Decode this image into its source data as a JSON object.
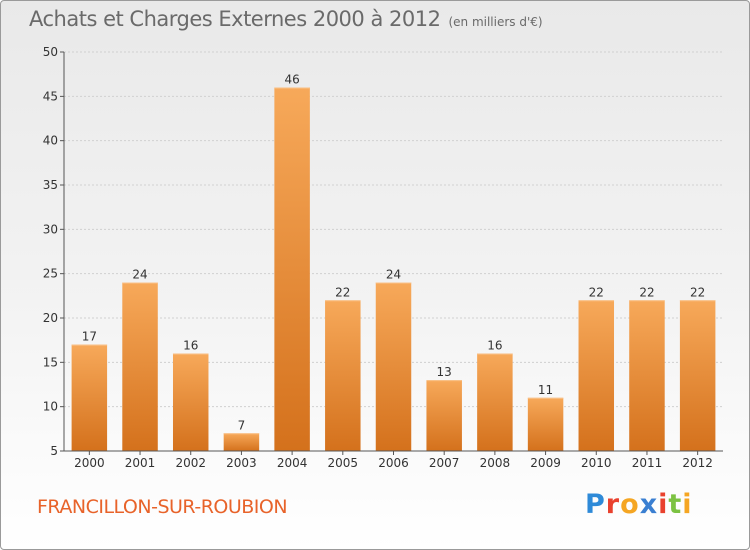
{
  "title": "Achats et Charges Externes 2000 à 2012",
  "subtitle": "(en milliers d'€)",
  "commune": "FRANCILLON-SUR-ROUBION",
  "logo": {
    "text": "Proxiti",
    "letters": [
      {
        "ch": "P",
        "color": "#2e8ad8"
      },
      {
        "ch": "r",
        "color": "#e9412e"
      },
      {
        "ch": "o",
        "color": "#f5a623"
      },
      {
        "ch": "x",
        "color": "#3a7fd1"
      },
      {
        "ch": "i",
        "color": "#e9412e"
      },
      {
        "ch": "t",
        "color": "#7cc242"
      },
      {
        "ch": "i",
        "color": "#f5a623"
      }
    ]
  },
  "colors": {
    "bar_top": "#f7a95a",
    "bar_bottom": "#d4711c",
    "commune": "#e8632a"
  },
  "chart_data": {
    "type": "bar",
    "title": "Achats et Charges Externes 2000 à 2012",
    "subtitle": "(en milliers d'€)",
    "categories": [
      "2000",
      "2001",
      "2002",
      "2003",
      "2004",
      "2005",
      "2006",
      "2007",
      "2008",
      "2009",
      "2010",
      "2011",
      "2012"
    ],
    "values": [
      17,
      24,
      16,
      7,
      46,
      22,
      24,
      13,
      16,
      11,
      22,
      22,
      22
    ],
    "ylim": [
      5,
      50
    ],
    "yticks": [
      5,
      10,
      15,
      20,
      25,
      30,
      35,
      40,
      45,
      50
    ],
    "grid": true,
    "xlabel": "",
    "ylabel": ""
  }
}
